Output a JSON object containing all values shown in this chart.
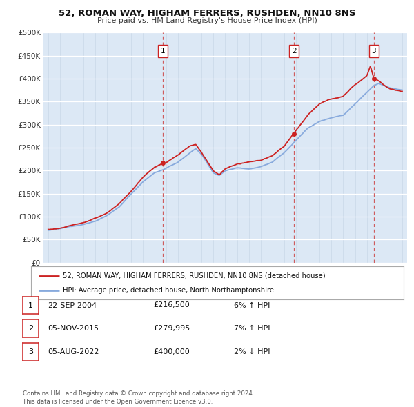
{
  "title": "52, ROMAN WAY, HIGHAM FERRERS, RUSHDEN, NN10 8NS",
  "subtitle": "Price paid vs. HM Land Registry's House Price Index (HPI)",
  "background_color": "#ffffff",
  "plot_bg_color": "#dce8f5",
  "ylim": [
    0,
    500000
  ],
  "yticks": [
    0,
    50000,
    100000,
    150000,
    200000,
    250000,
    300000,
    350000,
    400000,
    450000,
    500000
  ],
  "ytick_labels": [
    "£0",
    "£50K",
    "£100K",
    "£150K",
    "£200K",
    "£250K",
    "£300K",
    "£350K",
    "£400K",
    "£450K",
    "£500K"
  ],
  "sale_dates_num": [
    2004.73,
    2015.84,
    2022.59
  ],
  "sale_prices": [
    216500,
    279995,
    400000
  ],
  "sale_labels": [
    "1",
    "2",
    "3"
  ],
  "hpi_line_color": "#88aadd",
  "price_line_color": "#cc2222",
  "sale_marker_color": "#cc2222",
  "dashed_color": "#cc4444",
  "legend_line1": "52, ROMAN WAY, HIGHAM FERRERS, RUSHDEN, NN10 8NS (detached house)",
  "legend_line2": "HPI: Average price, detached house, North Northamptonshire",
  "table_rows": [
    [
      "1",
      "22-SEP-2004",
      "£216,500",
      "6% ↑ HPI"
    ],
    [
      "2",
      "05-NOV-2015",
      "£279,995",
      "7% ↑ HPI"
    ],
    [
      "3",
      "05-AUG-2022",
      "£400,000",
      "2% ↓ HPI"
    ]
  ],
  "footnote": "Contains HM Land Registry data © Crown copyright and database right 2024.\nThis data is licensed under the Open Government Licence v3.0.",
  "xmin": 1994.6,
  "xmax": 2025.4
}
